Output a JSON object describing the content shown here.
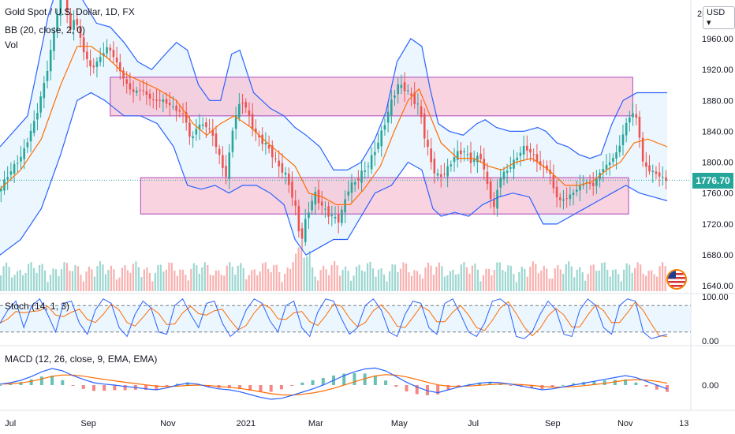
{
  "legend": {
    "symbol": "Gold Spot / U.S. Dollar, 1D, FX",
    "bb": "BB (20, close, 2, 0)",
    "vol": "Vol",
    "stoch": "Stoch (14, 1, 3)",
    "macd": "MACD (12, 26, close, 9, EMA, EMA)"
  },
  "price_axis": {
    "unit": "USD",
    "top_partial": "2(",
    "ticks": [
      "1960.00",
      "1920.00",
      "1880.00",
      "1840.00",
      "1800.00",
      "1760.00",
      "1720.00",
      "1680.00",
      "1640.00"
    ],
    "current_price": "1776.70"
  },
  "stoch_axis": [
    "100.00",
    "0.00"
  ],
  "macd_axis": [
    "0.00"
  ],
  "x_axis": [
    "Jul",
    "Sep",
    "Nov",
    "2021",
    "Mar",
    "May",
    "Jul",
    "Sep",
    "Nov",
    "13"
  ],
  "colors": {
    "up": "#26a69a",
    "down": "#ef5350",
    "bb_band": "#2962ff",
    "bb_basis": "#ff6d00",
    "bb_fill": "#e3f2fd",
    "zone_fill": "#f8bbd0",
    "zone_border": "#ab47bc",
    "stoch_k": "#2962ff",
    "stoch_d": "#ff6d00",
    "macd_line": "#2962ff",
    "signal_line": "#ff6d00"
  },
  "chart_data": [
    {
      "type": "candlestick",
      "title": "Gold Spot / U.S. Dollar, 1D, FX",
      "ylabel": "USD",
      "ylim": [
        1630,
        2010
      ],
      "x_labels": [
        "Jul",
        "Sep",
        "Nov",
        "2021",
        "Mar",
        "May",
        "Jul",
        "Sep",
        "Nov",
        "13"
      ],
      "close_path": [
        [
          0,
          1760
        ],
        [
          8,
          1785
        ],
        [
          18,
          1810
        ],
        [
          28,
          1860
        ],
        [
          36,
          1920
        ],
        [
          42,
          1980
        ],
        [
          48,
          2040
        ],
        [
          52,
          1965
        ],
        [
          56,
          1990
        ],
        [
          62,
          1945
        ],
        [
          68,
          1920
        ],
        [
          74,
          1935
        ],
        [
          80,
          1950
        ],
        [
          86,
          1930
        ],
        [
          92,
          1905
        ],
        [
          98,
          1890
        ],
        [
          104,
          1895
        ],
        [
          112,
          1880
        ],
        [
          120,
          1880
        ],
        [
          128,
          1870
        ],
        [
          136,
          1860
        ],
        [
          140,
          1825
        ],
        [
          144,
          1845
        ],
        [
          150,
          1850
        ],
        [
          156,
          1835
        ],
        [
          162,
          1800
        ],
        [
          166,
          1780
        ],
        [
          170,
          1840
        ],
        [
          174,
          1870
        ],
        [
          178,
          1880
        ],
        [
          182,
          1860
        ],
        [
          186,
          1840
        ],
        [
          190,
          1830
        ],
        [
          196,
          1820
        ],
        [
          202,
          1800
        ],
        [
          210,
          1780
        ],
        [
          216,
          1740
        ],
        [
          220,
          1695
        ],
        [
          224,
          1730
        ],
        [
          230,
          1760
        ],
        [
          236,
          1740
        ],
        [
          242,
          1730
        ],
        [
          248,
          1725
        ],
        [
          254,
          1765
        ],
        [
          262,
          1780
        ],
        [
          270,
          1800
        ],
        [
          278,
          1835
        ],
        [
          284,
          1870
        ],
        [
          290,
          1900
        ],
        [
          296,
          1895
        ],
        [
          300,
          1885
        ],
        [
          306,
          1870
        ],
        [
          310,
          1830
        ],
        [
          316,
          1790
        ],
        [
          320,
          1780
        ],
        [
          326,
          1790
        ],
        [
          332,
          1810
        ],
        [
          338,
          1815
        ],
        [
          344,
          1800
        ],
        [
          350,
          1810
        ],
        [
          356,
          1765
        ],
        [
          360,
          1740
        ],
        [
          364,
          1780
        ],
        [
          370,
          1790
        ],
        [
          376,
          1805
        ],
        [
          382,
          1820
        ],
        [
          388,
          1810
        ],
        [
          394,
          1795
        ],
        [
          400,
          1790
        ],
        [
          404,
          1760
        ],
        [
          408,
          1750
        ],
        [
          414,
          1755
        ],
        [
          420,
          1765
        ],
        [
          426,
          1775
        ],
        [
          432,
          1770
        ],
        [
          438,
          1790
        ],
        [
          444,
          1800
        ],
        [
          450,
          1815
        ],
        [
          456,
          1850
        ],
        [
          460,
          1865
        ],
        [
          464,
          1855
        ],
        [
          468,
          1800
        ],
        [
          472,
          1790
        ],
        [
          478,
          1785
        ],
        [
          484,
          1777
        ]
      ],
      "bb": {
        "upper": [
          [
            0,
            1820
          ],
          [
            20,
            1860
          ],
          [
            35,
            1990
          ],
          [
            44,
            2040
          ],
          [
            52,
            2035
          ],
          [
            60,
            2010
          ],
          [
            70,
            1980
          ],
          [
            80,
            1975
          ],
          [
            90,
            1955
          ],
          [
            100,
            1930
          ],
          [
            110,
            1920
          ],
          [
            120,
            1940
          ],
          [
            128,
            1955
          ],
          [
            136,
            1945
          ],
          [
            144,
            1900
          ],
          [
            152,
            1880
          ],
          [
            160,
            1880
          ],
          [
            168,
            1940
          ],
          [
            174,
            1945
          ],
          [
            184,
            1890
          ],
          [
            196,
            1870
          ],
          [
            206,
            1860
          ],
          [
            214,
            1845
          ],
          [
            222,
            1835
          ],
          [
            232,
            1820
          ],
          [
            242,
            1790
          ],
          [
            252,
            1790
          ],
          [
            262,
            1800
          ],
          [
            272,
            1830
          ],
          [
            280,
            1865
          ],
          [
            288,
            1930
          ],
          [
            298,
            1960
          ],
          [
            306,
            1950
          ],
          [
            312,
            1895
          ],
          [
            318,
            1850
          ],
          [
            326,
            1840
          ],
          [
            336,
            1835
          ],
          [
            346,
            1850
          ],
          [
            352,
            1855
          ],
          [
            360,
            1845
          ],
          [
            370,
            1840
          ],
          [
            380,
            1840
          ],
          [
            390,
            1845
          ],
          [
            396,
            1840
          ],
          [
            404,
            1825
          ],
          [
            412,
            1820
          ],
          [
            420,
            1810
          ],
          [
            428,
            1805
          ],
          [
            436,
            1810
          ],
          [
            444,
            1850
          ],
          [
            452,
            1880
          ],
          [
            462,
            1890
          ],
          [
            472,
            1890
          ],
          [
            484,
            1890
          ]
        ],
        "basis": [
          [
            0,
            1765
          ],
          [
            15,
            1790
          ],
          [
            30,
            1830
          ],
          [
            44,
            1900
          ],
          [
            56,
            1950
          ],
          [
            66,
            1950
          ],
          [
            78,
            1935
          ],
          [
            90,
            1915
          ],
          [
            102,
            1905
          ],
          [
            114,
            1895
          ],
          [
            128,
            1880
          ],
          [
            140,
            1850
          ],
          [
            150,
            1835
          ],
          [
            160,
            1850
          ],
          [
            170,
            1860
          ],
          [
            182,
            1845
          ],
          [
            194,
            1825
          ],
          [
            204,
            1810
          ],
          [
            214,
            1795
          ],
          [
            224,
            1760
          ],
          [
            234,
            1755
          ],
          [
            244,
            1745
          ],
          [
            254,
            1745
          ],
          [
            264,
            1765
          ],
          [
            276,
            1795
          ],
          [
            286,
            1840
          ],
          [
            296,
            1880
          ],
          [
            304,
            1895
          ],
          [
            312,
            1860
          ],
          [
            320,
            1825
          ],
          [
            332,
            1805
          ],
          [
            344,
            1805
          ],
          [
            354,
            1795
          ],
          [
            364,
            1790
          ],
          [
            374,
            1800
          ],
          [
            386,
            1805
          ],
          [
            398,
            1790
          ],
          [
            410,
            1770
          ],
          [
            420,
            1770
          ],
          [
            430,
            1775
          ],
          [
            440,
            1790
          ],
          [
            450,
            1800
          ],
          [
            460,
            1825
          ],
          [
            470,
            1830
          ],
          [
            484,
            1820
          ]
        ],
        "lower": [
          [
            0,
            1680
          ],
          [
            15,
            1700
          ],
          [
            30,
            1740
          ],
          [
            44,
            1810
          ],
          [
            56,
            1880
          ],
          [
            66,
            1890
          ],
          [
            76,
            1880
          ],
          [
            90,
            1860
          ],
          [
            102,
            1860
          ],
          [
            114,
            1850
          ],
          [
            126,
            1820
          ],
          [
            136,
            1770
          ],
          [
            146,
            1765
          ],
          [
            156,
            1770
          ],
          [
            166,
            1760
          ],
          [
            176,
            1770
          ],
          [
            186,
            1770
          ],
          [
            196,
            1760
          ],
          [
            206,
            1745
          ],
          [
            214,
            1700
          ],
          [
            222,
            1680
          ],
          [
            232,
            1690
          ],
          [
            242,
            1700
          ],
          [
            252,
            1700
          ],
          [
            262,
            1730
          ],
          [
            272,
            1760
          ],
          [
            284,
            1770
          ],
          [
            296,
            1800
          ],
          [
            306,
            1790
          ],
          [
            314,
            1740
          ],
          [
            320,
            1730
          ],
          [
            330,
            1735
          ],
          [
            340,
            1730
          ],
          [
            350,
            1745
          ],
          [
            362,
            1755
          ],
          [
            372,
            1760
          ],
          [
            384,
            1755
          ],
          [
            394,
            1720
          ],
          [
            404,
            1720
          ],
          [
            414,
            1730
          ],
          [
            424,
            1740
          ],
          [
            434,
            1750
          ],
          [
            444,
            1760
          ],
          [
            454,
            1770
          ],
          [
            464,
            1760
          ],
          [
            474,
            1755
          ],
          [
            484,
            1750
          ]
        ]
      },
      "zones": [
        {
          "x0": 80,
          "x1": 459,
          "top": 1910,
          "bottom": 1860
        },
        {
          "x0": 102,
          "x1": 456,
          "top": 1780,
          "bottom": 1733
        }
      ]
    },
    {
      "type": "line",
      "title": "Stoch (14, 1, 3)",
      "ylim": [
        0,
        100
      ],
      "levels": [
        80,
        20
      ],
      "series": [
        {
          "name": "",
          "values": [
            40,
            70,
            90,
            30,
            80,
            95,
            60,
            20,
            85,
            90,
            40,
            15,
            70,
            95,
            85,
            30,
            10,
            60,
            90,
            75,
            20,
            15,
            80,
            95,
            60,
            30,
            85,
            90,
            40,
            10,
            25,
            70,
            95,
            85,
            45,
            20,
            80,
            90,
            30,
            10,
            65,
            95,
            90,
            50,
            15,
            30,
            80,
            95,
            70,
            20,
            10,
            60,
            90,
            85,
            30,
            15,
            85,
            95,
            60,
            20,
            10,
            40,
            90,
            95,
            80,
            10,
            5,
            20,
            60,
            90,
            70,
            15,
            10,
            70,
            95,
            80,
            30,
            15,
            80,
            95,
            90,
            20,
            5,
            10,
            15
          ]
        }
      ]
    },
    {
      "type": "line",
      "title": "MACD (12, 26, close, 9, EMA, EMA)",
      "series": [
        {
          "name": "",
          "values": [
            2,
            5,
            10,
            18,
            28,
            35,
            30,
            20,
            12,
            5,
            2,
            0,
            -3,
            -5,
            -8,
            -10,
            -6,
            0,
            4,
            2,
            -4,
            -8,
            -10,
            -14,
            -20,
            -26,
            -30,
            -28,
            -22,
            -15,
            -8,
            0,
            10,
            20,
            28,
            34,
            36,
            30,
            18,
            6,
            -4,
            -12,
            -16,
            -10,
            -4,
            0,
            4,
            6,
            5,
            2,
            -2,
            -6,
            -10,
            -8,
            -4,
            0,
            4,
            8,
            12,
            16,
            20,
            16,
            8,
            0,
            -8
          ]
        }
      ]
    }
  ]
}
